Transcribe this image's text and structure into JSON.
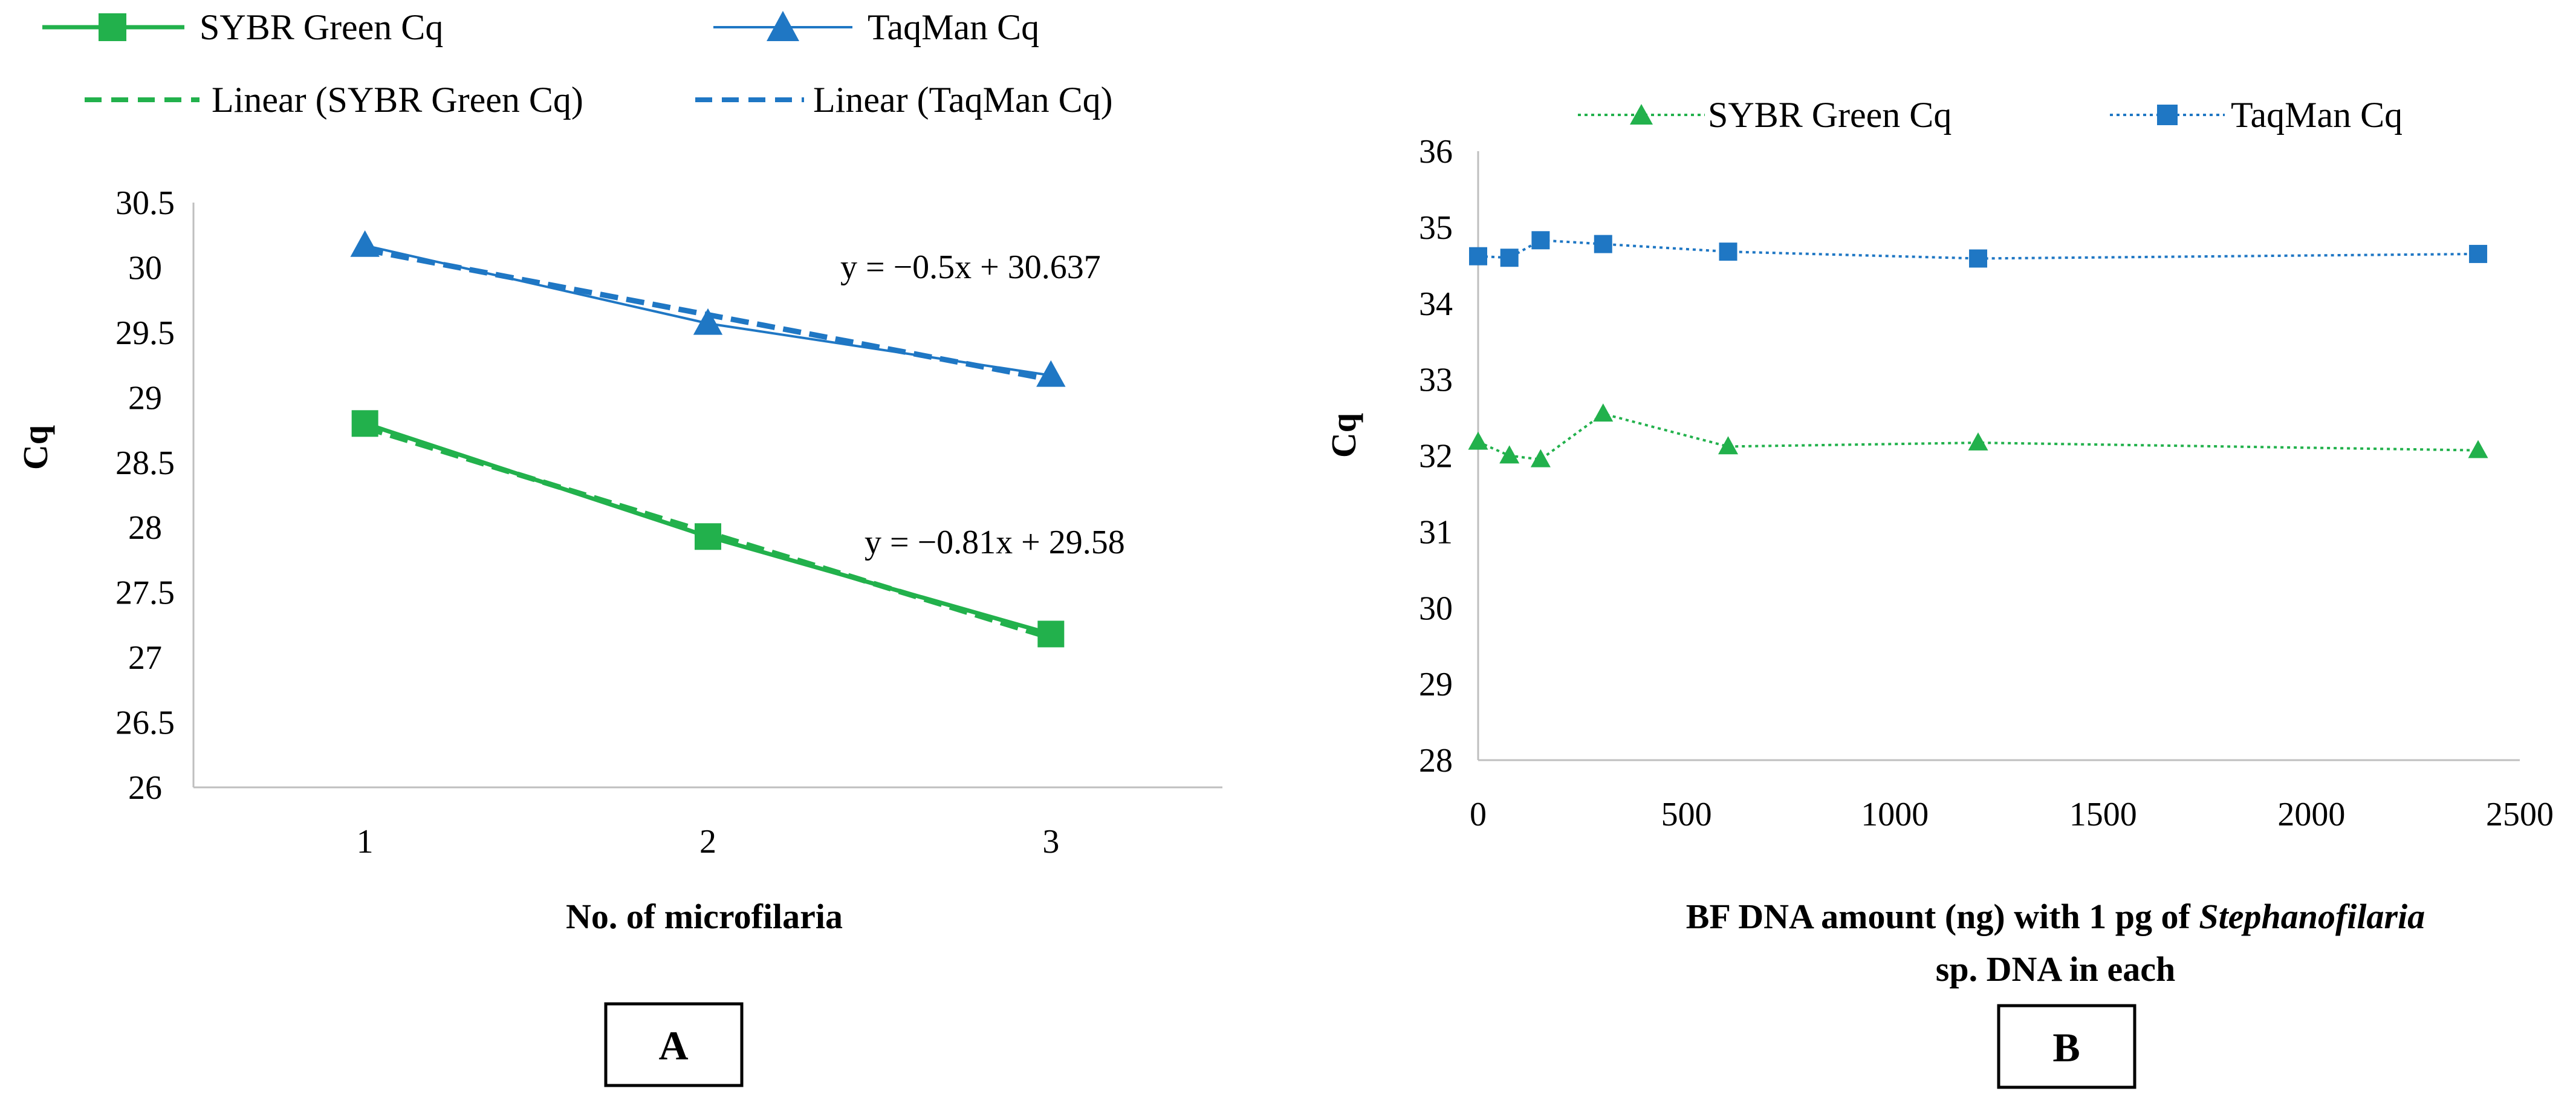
{
  "chart_data": [
    {
      "type": "line",
      "panel": "A",
      "xlabel": "No. of microfilaria",
      "ylabel": "Cq",
      "x": [
        1,
        2,
        3
      ],
      "xlim": [
        0.5,
        3.5
      ],
      "xticks": [
        "1",
        "2",
        "3"
      ],
      "ylim": [
        26,
        30.5
      ],
      "yticks": [
        "26",
        "26.5",
        "27",
        "27.5",
        "28",
        "28.5",
        "29",
        "29.5",
        "30",
        "30.5"
      ],
      "series": [
        {
          "name": "SYBR Green Cq",
          "values": [
            28.8,
            27.93,
            27.18
          ],
          "color": "#22b14c",
          "marker": "square"
        },
        {
          "name": "TaqMan Cq",
          "values": [
            30.17,
            29.57,
            29.17
          ],
          "color": "#1f77c4",
          "marker": "triangle"
        }
      ],
      "trendlines": [
        {
          "name": "Linear (SYBR Green Cq)",
          "slope": -0.81,
          "intercept": 29.58,
          "equation": "y = −0.81x + 29.58",
          "color": "#22b14c"
        },
        {
          "name": "Linear (TaqMan Cq)",
          "slope": -0.5,
          "intercept": 30.637,
          "equation": "y = −0.5x + 30.637",
          "color": "#1f77c4"
        }
      ]
    },
    {
      "type": "line",
      "panel": "B",
      "ylabel": "Cq",
      "xlabel_line1_a": "BF DNA amount (ng)  with 1 pg of ",
      "xlabel_line1_b": "Stephanofilaria",
      "xlabel_line2": "sp. DNA in each",
      "x": [
        0,
        75,
        150,
        300,
        600,
        1200,
        2400
      ],
      "xlim": [
        0,
        2500
      ],
      "xticks": [
        "0",
        "500",
        "1000",
        "1500",
        "2000",
        "2500"
      ],
      "ylim": [
        28,
        36
      ],
      "yticks": [
        "28",
        "29",
        "30",
        "31",
        "32",
        "33",
        "34",
        "35",
        "36"
      ],
      "series": [
        {
          "name": "SYBR Green Cq",
          "values": [
            32.18,
            32.0,
            31.95,
            32.55,
            32.12,
            32.17,
            32.07
          ],
          "color": "#22b14c",
          "marker": "triangle"
        },
        {
          "name": "TaqMan Cq",
          "values": [
            34.62,
            34.6,
            34.83,
            34.78,
            34.68,
            34.59,
            34.65
          ],
          "color": "#1f77c4",
          "marker": "square"
        }
      ]
    }
  ],
  "labels": {
    "panel_a": "A",
    "panel_b": "B"
  }
}
